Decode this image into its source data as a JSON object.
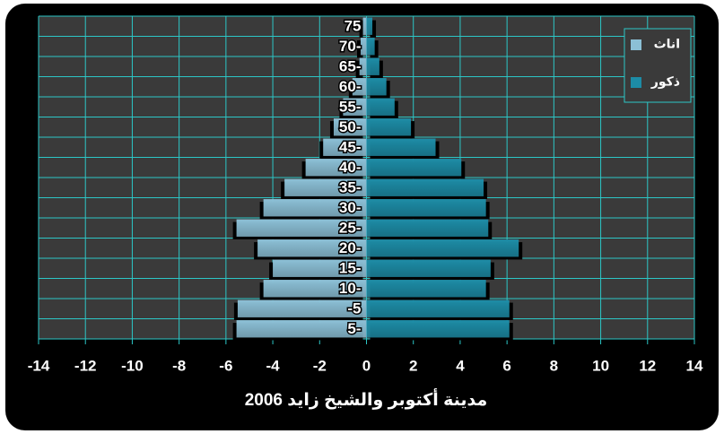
{
  "chart_data": {
    "type": "bar",
    "orientation": "horizontal",
    "title": "مدينة أكتوبر والشيخ زايد 2006",
    "categories": [
      "5-",
      "-5",
      "10-",
      "15-",
      "20-",
      "25-",
      "30-",
      "35-",
      "40-",
      "45-",
      "50-",
      "55-",
      "60-",
      "65-",
      "70-",
      "75"
    ],
    "series": [
      {
        "name": "اناث",
        "color": "#8cc0d6",
        "values": [
          -5.55,
          -5.5,
          -4.4,
          -4.0,
          -4.65,
          -5.55,
          -4.4,
          -3.5,
          -2.6,
          -1.85,
          -1.4,
          -1.0,
          -0.6,
          -0.3,
          -0.25,
          -0.15
        ]
      },
      {
        "name": "ذكور",
        "color": "#1d8ca6",
        "values": [
          6.1,
          6.1,
          5.1,
          5.3,
          6.5,
          5.2,
          5.1,
          5.0,
          4.05,
          2.95,
          1.9,
          1.2,
          0.85,
          0.55,
          0.35,
          0.25
        ]
      }
    ],
    "xlim": [
      -14,
      14
    ],
    "xticks": [
      -14,
      -12,
      -10,
      -8,
      -6,
      -4,
      -2,
      0,
      2,
      4,
      6,
      8,
      10,
      12,
      14
    ],
    "grid": true,
    "legend": "top-right"
  }
}
